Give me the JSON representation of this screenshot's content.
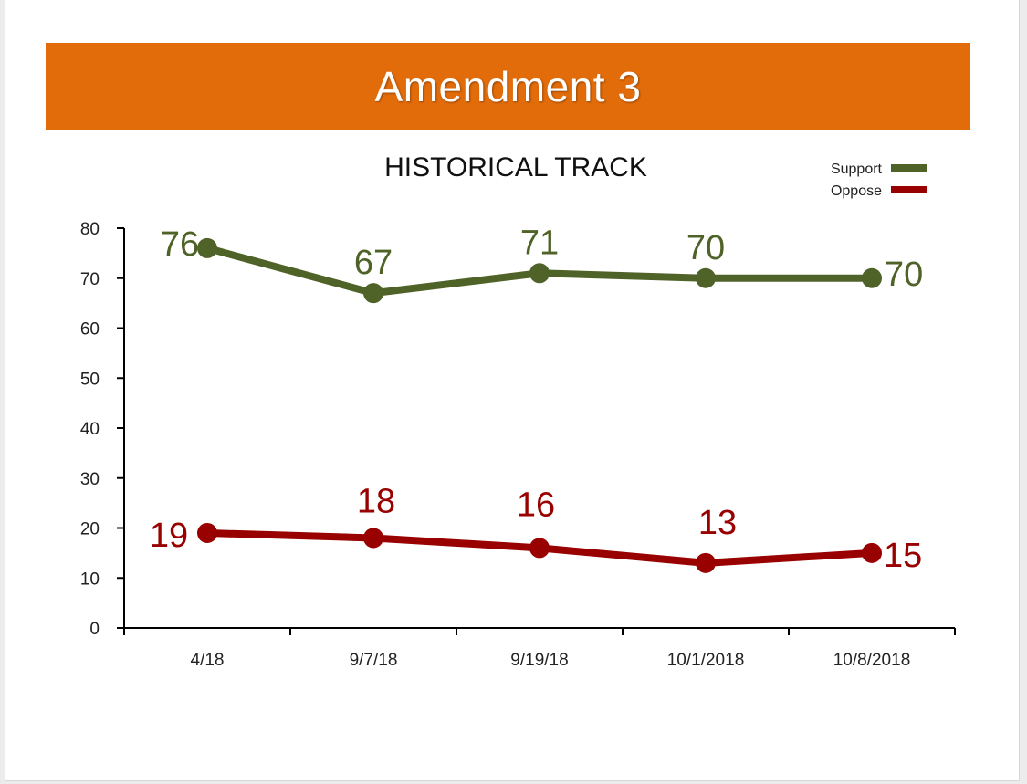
{
  "banner": {
    "title": "Amendment 3",
    "color": "#e36c0a"
  },
  "chart_data": {
    "type": "line",
    "title": "HISTORICAL TRACK",
    "xlabel": "",
    "ylabel": "",
    "categories": [
      "4/18",
      "9/7/18",
      "9/19/18",
      "10/1/2018",
      "10/8/2018"
    ],
    "ylim": [
      0,
      80
    ],
    "yticks": [
      0,
      10,
      20,
      30,
      40,
      50,
      60,
      70,
      80
    ],
    "grid": false,
    "legend_position": "top-right",
    "series": [
      {
        "name": "Support",
        "color": "#4f6228",
        "values": [
          76,
          67,
          71,
          70,
          70
        ]
      },
      {
        "name": "Oppose",
        "color": "#990000",
        "values": [
          19,
          18,
          16,
          13,
          15
        ]
      }
    ]
  }
}
